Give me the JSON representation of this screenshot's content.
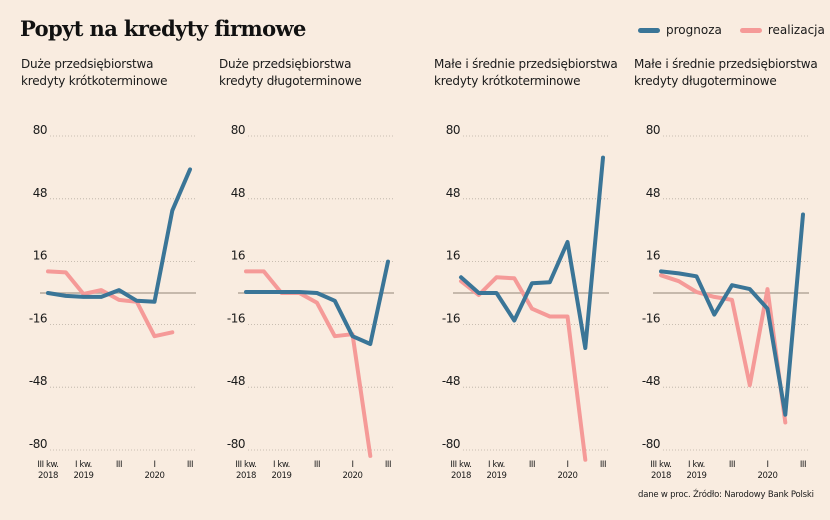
{
  "title": "Popyt na kredyty firmowe",
  "legend": [
    {
      "label": "prognoza",
      "color": "#3a7597"
    },
    {
      "label": "realizacja",
      "color": "#f59a98"
    }
  ],
  "source": "dane w proc. Źródło: Narodowy Bank Polski",
  "chart_data": [
    {
      "type": "line",
      "title_line1": "Duże przedsiębiorstwa",
      "title_line2": "kredyty krótkoterminowe",
      "ylim": [
        -80,
        80
      ],
      "yticks": [
        "80",
        "48",
        "16",
        "-16",
        "-48",
        "-80"
      ],
      "ytick_values": [
        80,
        48,
        16,
        -16,
        -48,
        -80
      ],
      "x": [
        "III 2018",
        "IV 2018",
        "I 2019",
        "II 2019",
        "III 2019",
        "IV 2019",
        "I 2020",
        "II 2020",
        "III 2020"
      ],
      "xtick_labels": [
        {
          "index": 0,
          "line1": "III kw.",
          "line2": "2018"
        },
        {
          "index": 2,
          "line1": "I kw.",
          "line2": "2019"
        },
        {
          "index": 4,
          "line1": "III",
          "line2": ""
        },
        {
          "index": 6,
          "line1": "I",
          "line2": "2020"
        },
        {
          "index": 8,
          "line1": "III",
          "line2": ""
        }
      ],
      "series": [
        {
          "name": "prognoza",
          "values": [
            0,
            -1.5,
            -2,
            -2,
            1.5,
            -4,
            -4.5,
            42,
            63
          ]
        },
        {
          "name": "realizacja",
          "values": [
            11,
            10.5,
            -0.5,
            1.5,
            -3.5,
            -4.5,
            -22,
            -20
          ]
        }
      ],
      "grid": true
    },
    {
      "type": "line",
      "title_line1": "Duże przedsiębiorstwa",
      "title_line2": "kredyty długoterminowe",
      "ylim": [
        -80,
        80
      ],
      "yticks": [
        "80",
        "48",
        "16",
        "-16",
        "-48",
        "-80"
      ],
      "ytick_values": [
        80,
        48,
        16,
        -16,
        -48,
        -80
      ],
      "x": [
        "III 2018",
        "IV 2018",
        "I 2019",
        "II 2019",
        "III 2019",
        "IV 2019",
        "I 2020",
        "II 2020",
        "III 2020"
      ],
      "xtick_labels": [
        {
          "index": 0,
          "line1": "III kw.",
          "line2": "2018"
        },
        {
          "index": 2,
          "line1": "I kw.",
          "line2": "2019"
        },
        {
          "index": 4,
          "line1": "III",
          "line2": ""
        },
        {
          "index": 6,
          "line1": "I",
          "line2": "2020"
        },
        {
          "index": 8,
          "line1": "III",
          "line2": ""
        }
      ],
      "series": [
        {
          "name": "prognoza",
          "values": [
            0.5,
            0.5,
            0.5,
            0.5,
            0,
            -4,
            -22,
            -26,
            16
          ]
        },
        {
          "name": "realizacja",
          "values": [
            11,
            11,
            0,
            0,
            -5,
            -22,
            -21,
            -83
          ]
        }
      ],
      "grid": true
    },
    {
      "type": "line",
      "title_line1": "Małe i średnie przedsiębiorstwa",
      "title_line2": "kredyty krótkoterminowe",
      "ylim": [
        -80,
        80
      ],
      "yticks": [
        "80",
        "48",
        "16",
        "-16",
        "-48",
        "-80"
      ],
      "ytick_values": [
        80,
        48,
        16,
        -16,
        -48,
        -80
      ],
      "x": [
        "III 2018",
        "IV 2018",
        "I 2019",
        "II 2019",
        "III 2019",
        "IV 2019",
        "I 2020",
        "II 2020",
        "III 2020"
      ],
      "xtick_labels": [
        {
          "index": 0,
          "line1": "III kw.",
          "line2": "2018"
        },
        {
          "index": 2,
          "line1": "I kw.",
          "line2": "2019"
        },
        {
          "index": 4,
          "line1": "III",
          "line2": ""
        },
        {
          "index": 6,
          "line1": "I",
          "line2": "2020"
        },
        {
          "index": 8,
          "line1": "III",
          "line2": ""
        }
      ],
      "series": [
        {
          "name": "prognoza",
          "values": [
            8,
            0,
            0,
            -14,
            5,
            5.5,
            26,
            -28,
            69
          ]
        },
        {
          "name": "realizacja",
          "values": [
            6,
            -1,
            8,
            7.5,
            -8,
            -12,
            -12,
            -85
          ]
        }
      ],
      "grid": true
    },
    {
      "type": "line",
      "title_line1": "Małe i średnie przedsiębiorstwa",
      "title_line2": "kredyty długoterminowe",
      "ylim": [
        -80,
        80
      ],
      "yticks": [
        "80",
        "48",
        "16",
        "-16",
        "-48",
        "-80"
      ],
      "ytick_values": [
        80,
        48,
        16,
        -16,
        -48,
        -80
      ],
      "x": [
        "III 2018",
        "IV 2018",
        "I 2019",
        "II 2019",
        "III 2019",
        "IV 2019",
        "I 2020",
        "II 2020",
        "III 2020"
      ],
      "xtick_labels": [
        {
          "index": 0,
          "line1": "III kw.",
          "line2": "2018"
        },
        {
          "index": 2,
          "line1": "I kw.",
          "line2": "2019"
        },
        {
          "index": 4,
          "line1": "III",
          "line2": ""
        },
        {
          "index": 6,
          "line1": "I",
          "line2": "2020"
        },
        {
          "index": 8,
          "line1": "III",
          "line2": ""
        }
      ],
      "series": [
        {
          "name": "prognoza",
          "values": [
            11,
            10,
            8.5,
            -11,
            4,
            2,
            -8,
            -62,
            40
          ]
        },
        {
          "name": "realizacja",
          "values": [
            9,
            6,
            0.5,
            -2,
            -3.5,
            -47,
            2,
            -66
          ]
        }
      ],
      "grid": true
    }
  ]
}
